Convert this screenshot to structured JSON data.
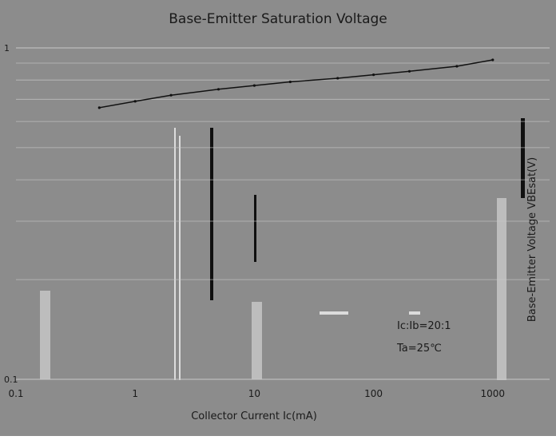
{
  "chart_data": {
    "type": "line",
    "title": "Base-Emitter Saturation Voltage",
    "xlabel": "Collector Current   Ic(mA)",
    "ylabel": "Base-Emitter Voltage  VBEsat(V)",
    "x_scale": "log",
    "y_scale": "log",
    "xlim": [
      0.1,
      3000
    ],
    "ylim": [
      0.1,
      1
    ],
    "x_ticks": [
      "0.1",
      "1",
      "10",
      "100",
      "1000"
    ],
    "y_ticks": [
      "1",
      "0.1"
    ],
    "grid": true,
    "annotations": [
      "Ic:Ib=20:1",
      "Ta=25℃"
    ],
    "series": [
      {
        "x": [
          0.5,
          1,
          2,
          5,
          10,
          20,
          50,
          100,
          200,
          500,
          1000
        ],
        "y": [
          0.66,
          0.69,
          0.72,
          0.75,
          0.77,
          0.79,
          0.81,
          0.83,
          0.85,
          0.88,
          0.92
        ]
      }
    ]
  },
  "colors": {
    "background": "#8c8c8c",
    "plot_area": "#8c8c8c",
    "gridline": "#c9c9c9",
    "series_line": "#111111",
    "text": "#1a1a1a"
  }
}
